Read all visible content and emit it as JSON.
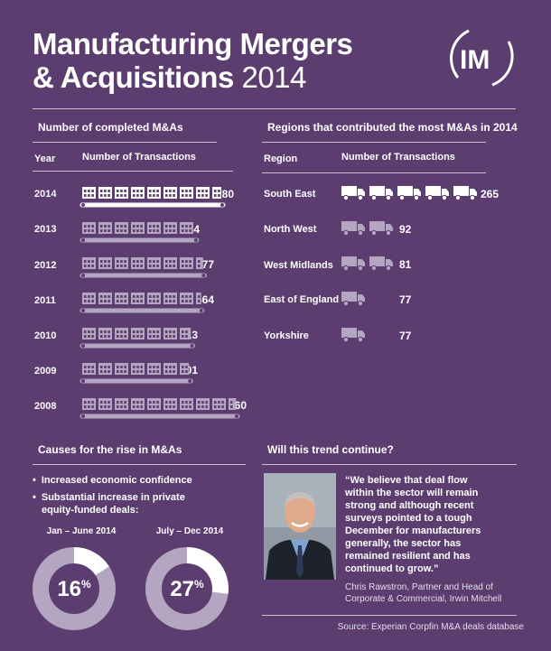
{
  "title": {
    "line1": "Manufacturing Mergers",
    "line2": "& Acquisitions",
    "year": "2014"
  },
  "logo_text": "IM",
  "colors": {
    "background": "#5c3d70",
    "active": "#ffffff",
    "inactive": "#b4a6c0"
  },
  "chart_data": [
    {
      "type": "bar",
      "title": "Number of completed M&As",
      "xlabel": "Year",
      "ylabel": "Number of Transactions",
      "icon": "factory-icon",
      "categories": [
        "2014",
        "2013",
        "2012",
        "2011",
        "2010",
        "2009",
        "2008"
      ],
      "values": [
        780,
        634,
        677,
        664,
        613,
        601,
        860
      ],
      "highlight": "2014"
    },
    {
      "type": "bar",
      "title": "Regions that contributed the most M&As in 2014",
      "xlabel": "Region",
      "ylabel": "Number of Transactions",
      "icon": "truck-icon",
      "categories": [
        "South East",
        "North West",
        "West Midlands",
        "East of England",
        "Yorkshire"
      ],
      "values": [
        265,
        92,
        81,
        77,
        77
      ],
      "highlight": "South East"
    },
    {
      "type": "pie",
      "title": "Jan – June 2014",
      "labels": [
        "equity-funded deals"
      ],
      "values": [
        16
      ],
      "display": "16",
      "unit": "%"
    },
    {
      "type": "pie",
      "title": "July – Dec 2014",
      "labels": [
        "equity-funded deals"
      ],
      "values": [
        27
      ],
      "display": "27",
      "unit": "%"
    }
  ],
  "causes": {
    "title": "Causes for the rise in M&As",
    "bullets": [
      "Increased economic confidence",
      "Substantial increase in private",
      "equity-funded deals:"
    ]
  },
  "trend": {
    "title": "Will this trend continue?",
    "quote_lines": [
      "“We believe that deal flow",
      "within the sector will remain",
      "strong and although recent",
      "surveys pointed to a tough",
      "December for manufacturers",
      "generally, the sector has",
      "remained resilient and has",
      "continued to grow.”"
    ],
    "attribution_lines": [
      "Chris Rawstron, Partner and Head of",
      "Corporate & Commercial, Irwin Mitchell"
    ]
  },
  "source": "Source: Experian Corpfin M&A deals database"
}
